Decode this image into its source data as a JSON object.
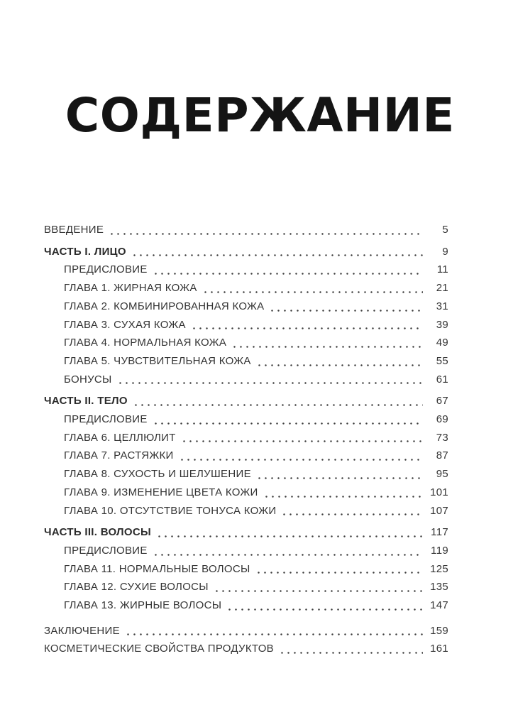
{
  "page": {
    "title": "СОДЕРЖАНИЕ",
    "background": "#ffffff",
    "title_color": "#141414",
    "text_color": "#333333"
  },
  "toc": {
    "entries": [
      {
        "label": "ВВЕДЕНИЕ",
        "page": "5",
        "level": 0,
        "bold": false
      },
      {
        "label": "ЧАСТЬ I. ЛИЦО",
        "page": "9",
        "level": 0,
        "bold": true,
        "section_break": true
      },
      {
        "label": "ПРЕДИСЛОВИЕ",
        "page": "11",
        "level": 1,
        "bold": false
      },
      {
        "label": "ГЛАВА 1. ЖИРНАЯ КОЖА",
        "page": "21",
        "level": 1,
        "bold": false
      },
      {
        "label": "ГЛАВА 2. КОМБИНИРОВАННАЯ КОЖА",
        "page": "31",
        "level": 1,
        "bold": false
      },
      {
        "label": "ГЛАВА 3. СУХАЯ КОЖА",
        "page": "39",
        "level": 1,
        "bold": false
      },
      {
        "label": "ГЛАВА 4. НОРМАЛЬНАЯ КОЖА",
        "page": "49",
        "level": 1,
        "bold": false
      },
      {
        "label": "ГЛАВА 5. ЧУВСТВИТЕЛЬНАЯ КОЖА",
        "page": "55",
        "level": 1,
        "bold": false
      },
      {
        "label": "БОНУСЫ",
        "page": "61",
        "level": 1,
        "bold": false
      },
      {
        "label": "ЧАСТЬ II. ТЕЛО",
        "page": "67",
        "level": 0,
        "bold": true,
        "section_break": true
      },
      {
        "label": "ПРЕДИСЛОВИЕ",
        "page": "69",
        "level": 1,
        "bold": false
      },
      {
        "label": "ГЛАВА 6. ЦЕЛЛЮЛИТ",
        "page": "73",
        "level": 1,
        "bold": false
      },
      {
        "label": "ГЛАВА 7. РАСТЯЖКИ",
        "page": "87",
        "level": 1,
        "bold": false
      },
      {
        "label": "ГЛАВА 8. СУХОСТЬ И ШЕЛУШЕНИЕ",
        "page": "95",
        "level": 1,
        "bold": false
      },
      {
        "label": "ГЛАВА 9. ИЗМЕНЕНИЕ ЦВЕТА КОЖИ",
        "page": "101",
        "level": 1,
        "bold": false
      },
      {
        "label": "ГЛАВА 10. ОТСУТСТВИЕ ТОНУСА КОЖИ",
        "page": "107",
        "level": 1,
        "bold": false
      },
      {
        "label": "ЧАСТЬ III. ВОЛОСЫ",
        "page": "117",
        "level": 0,
        "bold": true,
        "section_break": true
      },
      {
        "label": "ПРЕДИСЛОВИЕ",
        "page": "119",
        "level": 1,
        "bold": false
      },
      {
        "label": "ГЛАВА 11. НОРМАЛЬНЫЕ ВОЛОСЫ",
        "page": "125",
        "level": 1,
        "bold": false
      },
      {
        "label": "ГЛАВА 12. СУХИЕ ВОЛОСЫ",
        "page": "135",
        "level": 1,
        "bold": false
      },
      {
        "label": "ГЛАВА 13. ЖИРНЫЕ ВОЛОСЫ",
        "page": "147",
        "level": 1,
        "bold": false
      },
      {
        "label": "ЗАКЛЮЧЕНИЕ",
        "page": "159",
        "level": 0,
        "bold": false,
        "major_break": true
      },
      {
        "label": "КОСМЕТИЧЕСКИЕ СВОЙСТВА ПРОДУКТОВ",
        "page": "161",
        "level": 0,
        "bold": false
      }
    ]
  }
}
